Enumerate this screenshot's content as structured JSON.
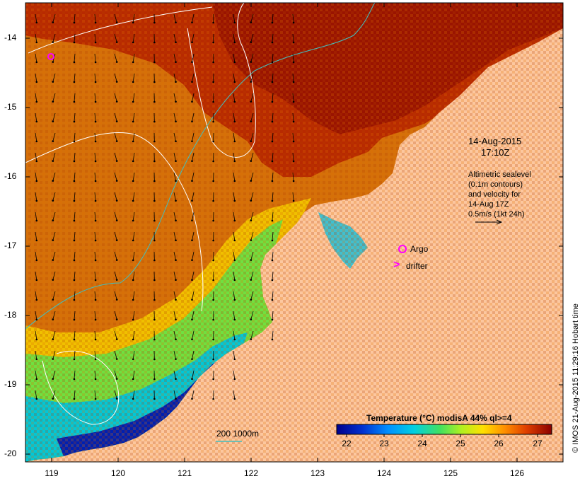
{
  "map": {
    "timestamp_date": "14-Aug-2015",
    "timestamp_time": "17:10Z",
    "altimetric_lines": [
      "Altimetric sealevel",
      "(0.1m contours)",
      "and velocity for",
      "14-Aug 17Z",
      "0.5m/s (1kt 24h)"
    ],
    "legend_argo": "Argo",
    "legend_drifter": "drifter",
    "drifter_glyph": ">",
    "isobath_label": "200  1000m",
    "lat_ticks": [
      "-14",
      "-15",
      "-16",
      "-17",
      "-18",
      "-19",
      "-20"
    ],
    "lon_ticks": [
      "119",
      "120",
      "121",
      "122",
      "123",
      "124",
      "125",
      "126"
    ],
    "colorbar_title": "Temperature (°C) modisA 44% ql>=4",
    "colorbar_ticks": [
      "22",
      "23",
      "24",
      "25",
      "26",
      "27"
    ],
    "credit": "© IMOS 21-Aug-2015 11:29:16 Hobart time",
    "colors": {
      "land": "#fcc79f",
      "isobath": "#40c0c0",
      "argo": "#ff00ff"
    }
  }
}
